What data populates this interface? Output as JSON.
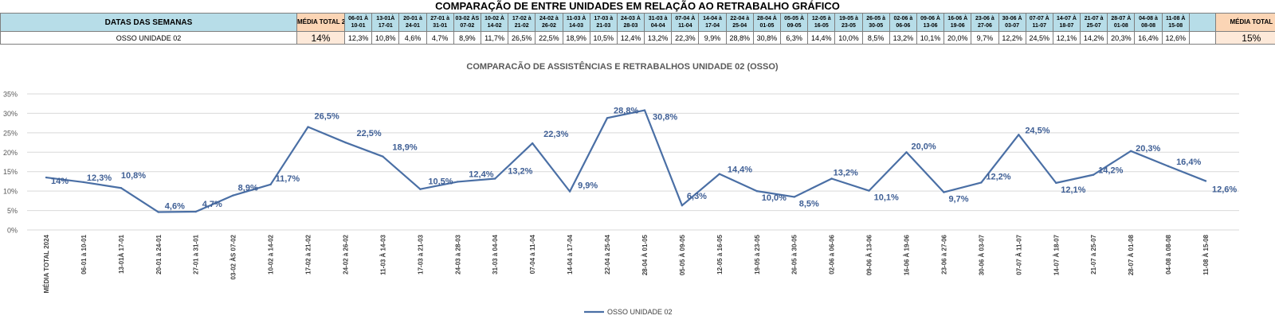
{
  "page_title": "COMPARAÇÃO DE ENTRE UNIDADES EM RELAÇÃO AO RETRABALHO GRÁFICO",
  "table": {
    "first_header": "DATAS DAS SEMANAS",
    "media_header": "MÉDIA TOTAL 2024",
    "total_header": "MÉDIA TOTAL",
    "weeks": [
      "06-01 À 10-01",
      "13-01À 17-01",
      "20-01 à 24-01",
      "27-01 à 31-01",
      "03-02 ÀS 07-02",
      "10-02 À 14-02",
      "17-02 à 21-02",
      "24-02 à 26-02",
      "11-03 À 14-03",
      "17-03 à 21-03",
      "24-03 À 28-03",
      "31-03 à 04-04",
      "07-04 À 11-04",
      "14-04 à 17-04",
      "22-04 à 25-04",
      "28-04 À 01-05",
      "05-05 À 09-05",
      "12-05 à 16-05",
      "19-05 à 23-05",
      "26-05 à 30-05",
      "02-06 à 06-06",
      "09-06 À 13-06",
      "16-06 À 19-06",
      "23-06 à 27-06",
      "30-06 À 03-07",
      "07-07 À 11-07",
      "14-07 À 18-07",
      "21-07 à 25-07",
      "28-07 À 01-08",
      "04-08 à 08-08",
      "11-08 À 15-08"
    ],
    "row_label": "OSSO UNIDADE 02",
    "media": "14%",
    "values": [
      "12,3%",
      "10,8%",
      "4,6%",
      "4,7%",
      "8,9%",
      "11,7%",
      "26,5%",
      "22,5%",
      "18,9%",
      "10,5%",
      "12,4%",
      "13,2%",
      "22,3%",
      "9,9%",
      "28,8%",
      "30,8%",
      "6,3%",
      "14,4%",
      "10,0%",
      "8,5%",
      "13,2%",
      "10,1%",
      "20,0%",
      "9,7%",
      "12,2%",
      "24,5%",
      "12,1%",
      "14,2%",
      "20,3%",
      "16,4%",
      "12,6%"
    ],
    "total": "15%"
  },
  "chart_data": {
    "type": "line",
    "title": "COMPARACÃO DE ASSISTÊNCIAS E RETRABALHOS UNIDADE 02  (OSSO)",
    "categories": [
      "MÉDIA TOTAL 2024",
      "06-01 à 10-01",
      "13-01À 17-01",
      "20-01 à 24-01",
      "27-01 à 31-01",
      "03-02 ÀS 07-02",
      "10-02 à 14-02",
      "17-02 à 21-02",
      "24-02 à 26-02",
      "11-03  À 14-03",
      "17-03 à 21-03",
      "24-03 à 28-03",
      "31-03 à 04-04",
      "07-04 à 11-04",
      "14-04 à 17-04",
      "22-04 à 25-04",
      "28-04 À 01-05",
      "05-05 À 09-05",
      "12-05 à 16-05",
      "19-05 à 23-05",
      "26-05 à 30-05",
      "02-06 à 06-06",
      "09-06 À 13-06",
      "16-06 À 19-06",
      "23-06 à 27-06",
      "30-06 À 03-07",
      "07-07 À 11-07",
      "14-07 À 18-07",
      "21-07 à 25-07",
      "28-07 À 01-08",
      "04-08 à 08-08",
      "11-08 À 15-08"
    ],
    "series": [
      {
        "name": "OSSO UNIDADE 02",
        "values": [
          13.5,
          12.3,
          10.8,
          4.6,
          4.7,
          8.9,
          11.7,
          26.5,
          22.5,
          18.9,
          10.5,
          12.4,
          13.2,
          22.3,
          9.9,
          28.8,
          30.8,
          6.3,
          14.4,
          10.0,
          8.5,
          13.2,
          10.1,
          20.0,
          9.7,
          12.2,
          24.5,
          12.1,
          14.2,
          20.3,
          16.4,
          12.6
        ],
        "labels": [
          "14%",
          "12,3%",
          "10,8%",
          "4,6%",
          "4,7%",
          "8,9%",
          "11,7%",
          "26,5%",
          "22,5%",
          "18,9%",
          "10,5%",
          "12,4%",
          "13,2%",
          "22,3%",
          "9,9%",
          "28,8%",
          "30,8%",
          "6,3%",
          "14,4%",
          "10,0%",
          "8,5%",
          "13,2%",
          "10,1%",
          "20,0%",
          "9,7%",
          "12,2%",
          "24,5%",
          "12,1%",
          "14,2%",
          "20,3%",
          "16,4%",
          "12,6%"
        ]
      }
    ],
    "yticks": [
      "0%",
      "5%",
      "10%",
      "15%",
      "20%",
      "25%",
      "30%",
      "35%"
    ],
    "ylim": [
      0,
      35
    ],
    "grid": true,
    "legend": "bottom",
    "line_color": "#4a6fa5",
    "label_color": "#3f5f95"
  }
}
